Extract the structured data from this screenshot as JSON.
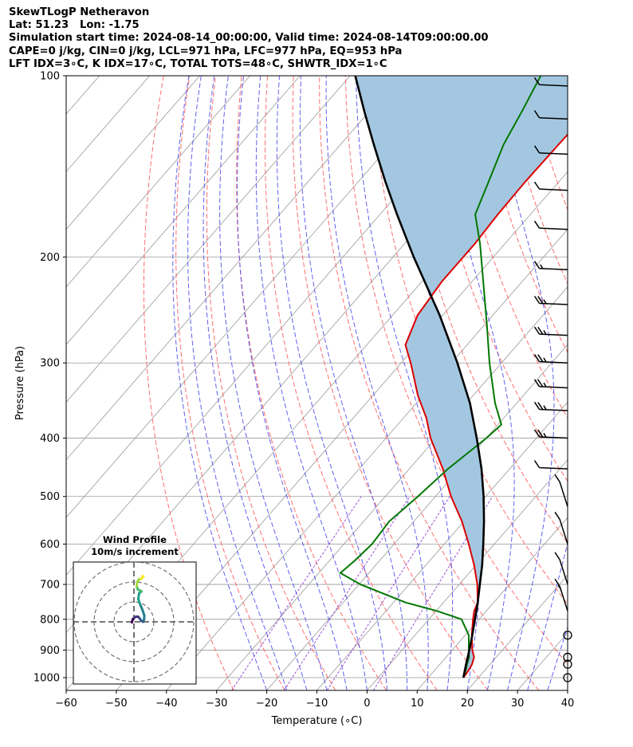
{
  "header": {
    "line1": "SkewTLogP Netheravon",
    "line2": "Lat: 51.23   Lon: -1.75",
    "line3": "Simulation start time: 2024-08-14_00:00:00, Valid time: 2024-08-14T09:00:00.00",
    "line4": "CAPE=0 j/kg, CIN=0 j/kg, LCL=971 hPa, LFC=977 hPa, EQ=953 hPa",
    "line5": "LFT IDX=3∘C, K IDX=17∘C, TOTAL TOTS=48∘C, SHWTR_IDX=1∘C"
  },
  "chart_data": {
    "type": "line",
    "subtype": "skew-T log-P diagram",
    "xlabel": "Temperature (∘C)",
    "ylabel": "Pressure (hPa)",
    "x_ticks": [
      -60,
      -50,
      -40,
      -30,
      -20,
      -10,
      0,
      10,
      20,
      30,
      40
    ],
    "x_tick_labels": [
      "−60",
      "−50",
      "−40",
      "−30",
      "−20",
      "−10",
      "0",
      "10",
      "20",
      "30",
      "40"
    ],
    "y_ticks": [
      100,
      200,
      300,
      400,
      500,
      600,
      700,
      800,
      900,
      1000
    ],
    "xlim": [
      -60,
      40
    ],
    "ylim": [
      1050,
      100
    ],
    "y_scale": "log",
    "grid": true,
    "colors": {
      "temperature": "#dd0000",
      "dewpoint": "#007700",
      "parcel": "#000000",
      "shade": "#a3c7e0",
      "dry_adiabats": "#ff5555",
      "moist_adiabats": "#4444ee",
      "mixing_ratio": "#8833cc",
      "isotherms": "#999999"
    },
    "series": [
      {
        "key": "temperature",
        "pressure": [
          1000,
          975,
          950,
          925,
          900,
          850,
          800,
          775,
          750,
          700,
          650,
          600,
          550,
          500,
          450,
          400,
          370,
          340,
          300,
          280,
          250,
          220,
          190,
          170,
          150,
          130,
          115,
          105,
          100
        ],
        "temperature": [
          17.0,
          16.8,
          16.4,
          15.6,
          14.0,
          11.3,
          8.8,
          7.6,
          6.8,
          3.6,
          -0.4,
          -5.1,
          -10.4,
          -16.9,
          -23.3,
          -31.1,
          -35.5,
          -41.0,
          -48.1,
          -52.3,
          -55.0,
          -56.0,
          -56.0,
          -56.5,
          -56.7,
          -56.5,
          -56.3,
          -55.8,
          -55.0
        ]
      },
      {
        "key": "dewpoint",
        "pressure": [
          1000,
          975,
          950,
          925,
          900,
          850,
          800,
          775,
          750,
          700,
          670,
          640,
          600,
          550,
          500,
          450,
          400,
          380,
          350,
          300,
          260,
          220,
          190,
          170,
          150,
          130,
          115,
          100
        ],
        "dewpoint": [
          17.0,
          16.3,
          15.4,
          14.6,
          13.3,
          10.7,
          6.5,
          0.2,
          -7.6,
          -19.7,
          -25.7,
          -25.0,
          -24.4,
          -24.9,
          -23.5,
          -22.3,
          -20.0,
          -19.3,
          -24.3,
          -32.4,
          -39.4,
          -47.7,
          -55.0,
          -61.0,
          -64.0,
          -67.5,
          -69.5,
          -72.0
        ]
      },
      {
        "key": "parcel",
        "pressure": [
          1000,
          950,
          900,
          850,
          800,
          750,
          700,
          650,
          600,
          550,
          500,
          450,
          400,
          350,
          300,
          250,
          200,
          170,
          150,
          130,
          115,
          100
        ],
        "temperature": [
          17.0,
          15.2,
          13.4,
          11.4,
          9.2,
          6.8,
          4.1,
          1.2,
          -2.2,
          -6.0,
          -10.4,
          -15.6,
          -21.9,
          -29.3,
          -38.8,
          -50.6,
          -65.9,
          -76.6,
          -84.6,
          -93.4,
          -100.8,
          -109.0
        ]
      }
    ],
    "wind_barbs": [
      {
        "p": 1000,
        "speed_kt": 0
      },
      {
        "p": 950,
        "speed_kt": 0
      },
      {
        "p": 925,
        "speed_kt": 0
      },
      {
        "p": 850,
        "speed_kt": 0
      },
      {
        "p": 775,
        "speed_kt": 15
      },
      {
        "p": 700,
        "speed_kt": 10
      },
      {
        "p": 600,
        "speed_kt": 10
      },
      {
        "p": 520,
        "speed_kt": 10
      },
      {
        "p": 450,
        "speed_kt": 10
      },
      {
        "p": 400,
        "speed_kt": 25
      },
      {
        "p": 360,
        "speed_kt": 25
      },
      {
        "p": 330,
        "speed_kt": 25
      },
      {
        "p": 300,
        "speed_kt": 25
      },
      {
        "p": 270,
        "speed_kt": 25
      },
      {
        "p": 240,
        "speed_kt": 25
      },
      {
        "p": 210,
        "speed_kt": 15
      },
      {
        "p": 180,
        "speed_kt": 10
      },
      {
        "p": 155,
        "speed_kt": 10
      },
      {
        "p": 135,
        "speed_kt": 10
      },
      {
        "p": 118,
        "speed_kt": 10
      },
      {
        "p": 104,
        "speed_kt": 10
      }
    ],
    "hodograph": {
      "title_line1": "Wind Profile",
      "title_line2": "10m/s increment",
      "ring_increment_ms": 10,
      "rings": [
        10,
        20,
        30
      ],
      "range_ms": 30,
      "u": [
        -1.0,
        -0.6,
        0.2,
        1.1,
        2.2,
        2.9,
        3.7,
        4.7,
        5.1,
        5.2,
        4.2,
        3.0,
        2.2,
        2.6,
        3.8,
        3.0,
        2.0,
        1.4,
        1.6,
        2.5,
        3.7,
        4.7,
        4.2
      ],
      "v": [
        -0.3,
        1.3,
        2.1,
        2.6,
        2.5,
        1.7,
        0.5,
        0.0,
        1.2,
        3.2,
        6.2,
        9.0,
        11.5,
        14.3,
        15.3,
        15.7,
        16.2,
        17.8,
        19.7,
        21.3,
        21.7,
        22.5,
        23.0
      ]
    }
  }
}
